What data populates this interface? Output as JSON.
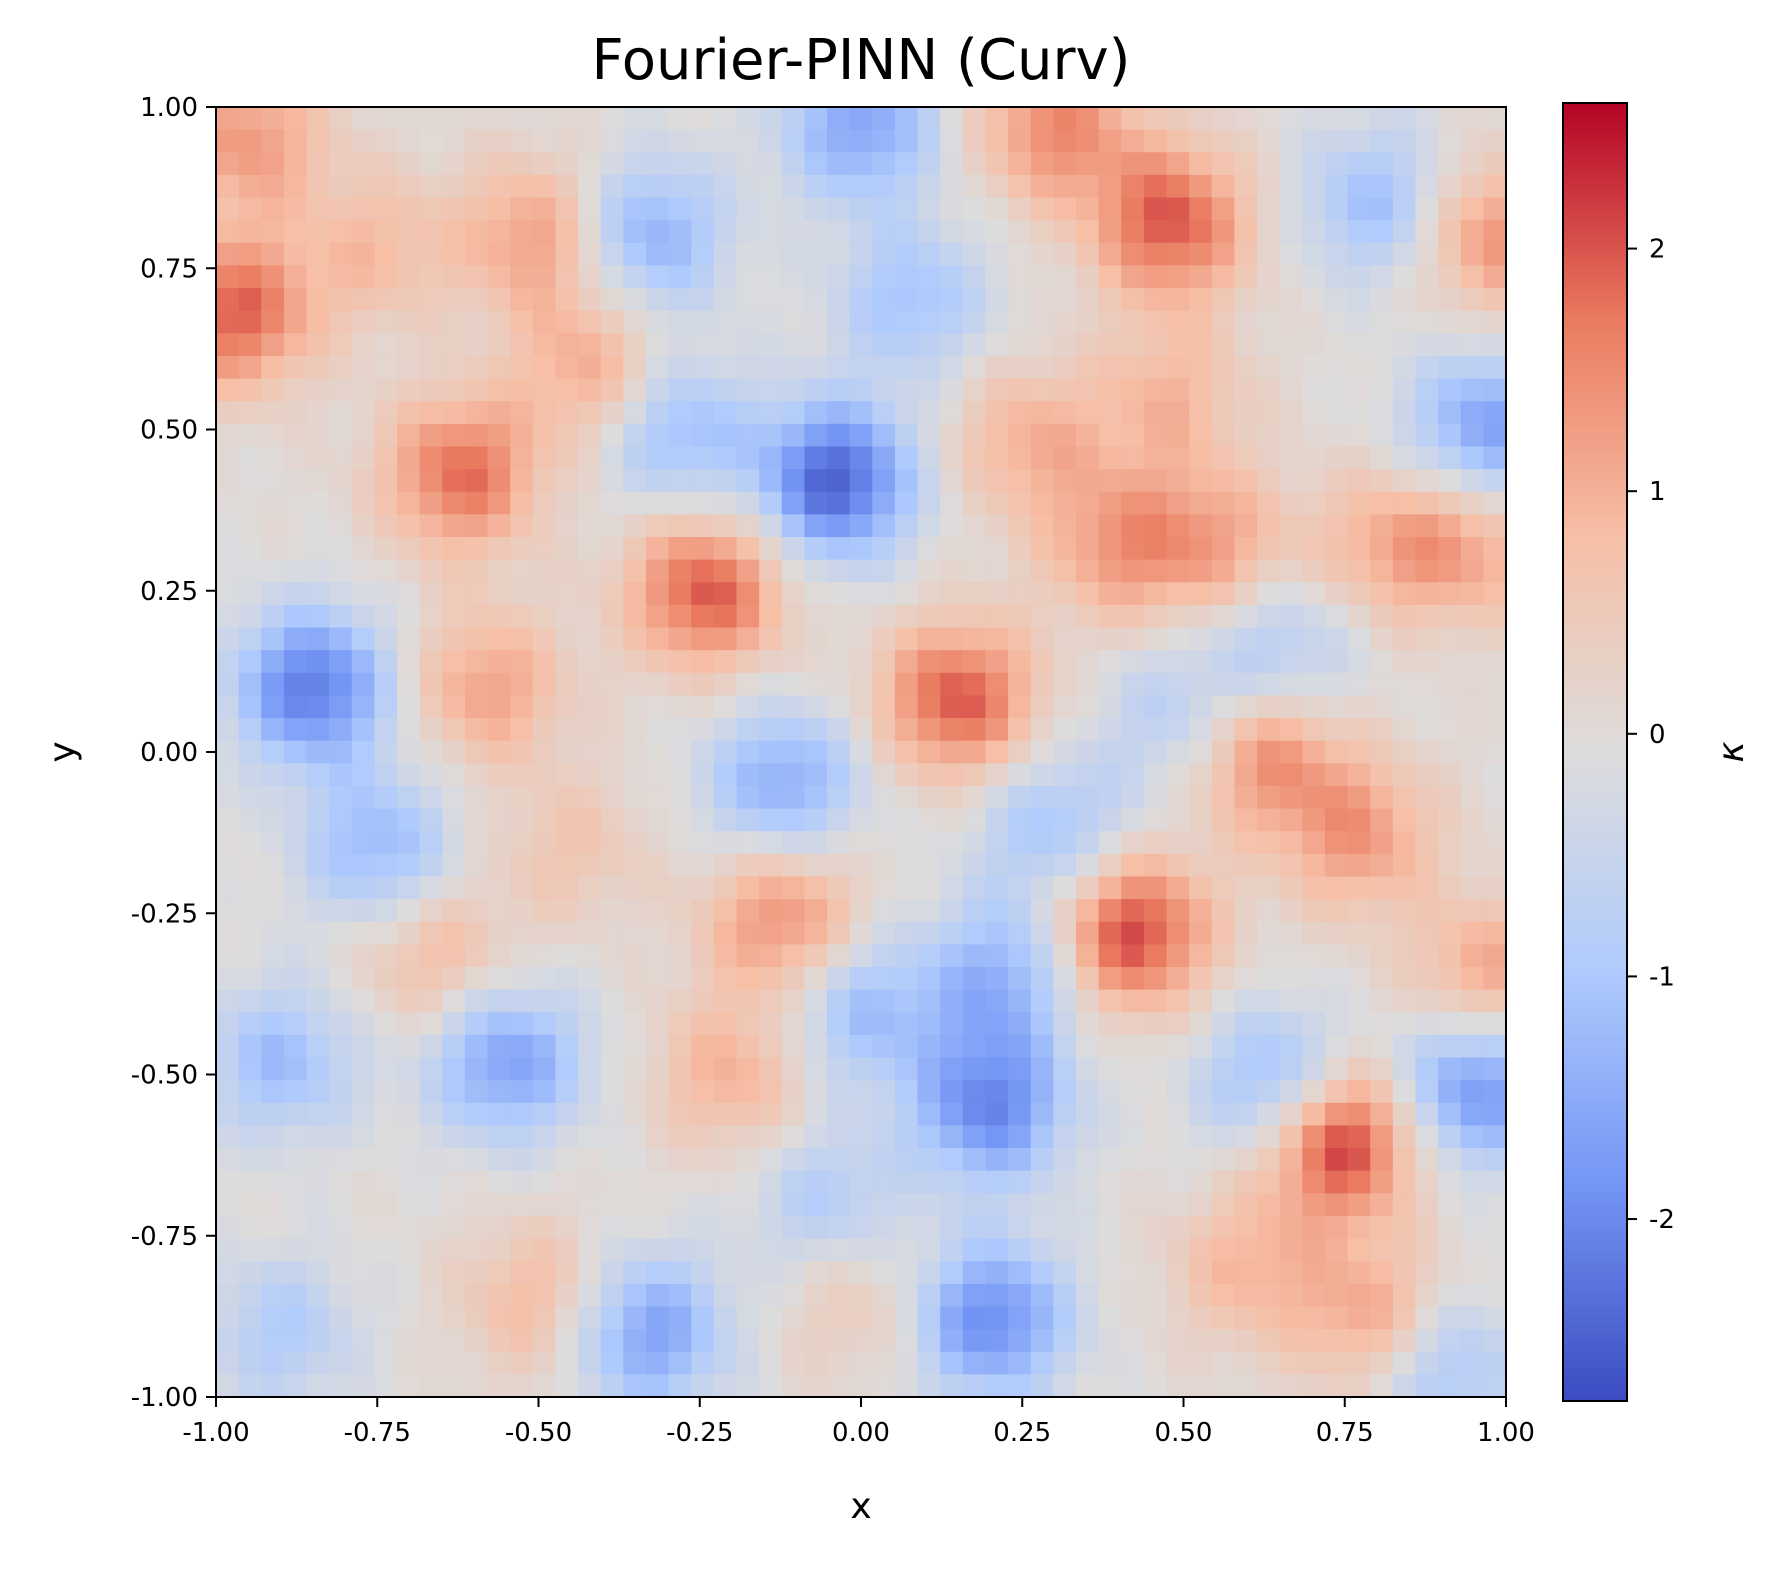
{
  "chart_data": {
    "type": "heatmap",
    "title": "Fourier-PINN (Curv)",
    "xlabel": "x",
    "ylabel": "y",
    "xlim": [
      -1.0,
      1.0
    ],
    "ylim": [
      -1.0,
      1.0
    ],
    "x_ticks": [
      -1.0,
      -0.75,
      -0.5,
      -0.25,
      0.0,
      0.25,
      0.5,
      0.75,
      1.0
    ],
    "x_tick_labels": [
      "-1.00",
      "-0.75",
      "-0.50",
      "-0.25",
      "0.00",
      "0.25",
      "0.50",
      "0.75",
      "1.00"
    ],
    "y_ticks": [
      1.0,
      0.75,
      0.5,
      0.25,
      0.0,
      -0.25,
      -0.5,
      -0.75,
      -1.0
    ],
    "y_tick_labels": [
      "1.00",
      "0.75",
      "0.50",
      "0.25",
      "0.00",
      "-0.25",
      "-0.50",
      "-0.75",
      "-1.00"
    ],
    "grid": false,
    "colormap": "coolwarm",
    "colormap_stops": [
      "#3b4cc0",
      "#7396f5",
      "#b0cbfc",
      "#dddcdc",
      "#f6bfa6",
      "#ea7b60",
      "#b40426"
    ],
    "colorbar": {
      "label": "κ",
      "vmin": -2.75,
      "vmax": 2.6,
      "ticks": [
        2,
        1,
        0,
        -1,
        -2
      ],
      "tick_labels": [
        "2",
        "1",
        "0",
        "-1",
        "-2"
      ]
    },
    "grid_size": [
      57,
      57
    ],
    "features": [
      {
        "x": 0.74,
        "y": -0.6,
        "value": 2.55
      },
      {
        "x": -0.04,
        "y": 0.42,
        "value": -2.5
      },
      {
        "x": 0.42,
        "y": -0.28,
        "value": 2.2
      },
      {
        "x": -0.24,
        "y": 0.25,
        "value": 2.0
      },
      {
        "x": 0.15,
        "y": 0.08,
        "value": 2.0
      },
      {
        "x": 0.48,
        "y": 0.82,
        "value": 2.0
      },
      {
        "x": -0.97,
        "y": 0.68,
        "value": 1.9
      },
      {
        "x": -0.62,
        "y": 0.43,
        "value": 1.8
      },
      {
        "x": 0.3,
        "y": 0.97,
        "value": 1.5
      },
      {
        "x": 0.62,
        "y": 0.0,
        "value": 1.6
      },
      {
        "x": -0.12,
        "y": -0.26,
        "value": 1.5
      },
      {
        "x": -0.95,
        "y": 0.95,
        "value": 1.3
      },
      {
        "x": 0.98,
        "y": 0.8,
        "value": 1.4
      },
      {
        "x": -0.5,
        "y": 0.8,
        "value": 1.3
      },
      {
        "x": -0.42,
        "y": 0.6,
        "value": 1.0
      },
      {
        "x": 0.4,
        "y": 0.32,
        "value": 1.2
      },
      {
        "x": 0.55,
        "y": 0.32,
        "value": 1.1
      },
      {
        "x": 0.82,
        "y": 0.32,
        "value": 1.0
      },
      {
        "x": 0.95,
        "y": 0.32,
        "value": 1.0
      },
      {
        "x": -0.58,
        "y": 0.1,
        "value": 1.2
      },
      {
        "x": -0.66,
        "y": -0.32,
        "value": 0.9
      },
      {
        "x": 0.77,
        "y": -0.13,
        "value": 1.3
      },
      {
        "x": 0.97,
        "y": -0.35,
        "value": 1.2
      },
      {
        "x": -0.2,
        "y": -0.5,
        "value": 1.0
      },
      {
        "x": 0.8,
        "y": -0.88,
        "value": 1.3
      },
      {
        "x": 0.6,
        "y": -0.8,
        "value": 0.9
      },
      {
        "x": -0.5,
        "y": -0.85,
        "value": 0.9
      },
      {
        "x": 0.26,
        "y": 0.48,
        "value": 1.0
      },
      {
        "x": 0.48,
        "y": 0.55,
        "value": 0.9
      },
      {
        "x": -0.35,
        "y": 0.52,
        "value": 0.6
      },
      {
        "x": -0.75,
        "y": 0.78,
        "value": 0.8
      },
      {
        "x": -0.85,
        "y": 0.1,
        "value": -2.2
      },
      {
        "x": -0.3,
        "y": 0.5,
        "value": -1.7
      },
      {
        "x": -0.33,
        "y": 0.8,
        "value": -1.5
      },
      {
        "x": 0.0,
        "y": 0.97,
        "value": -1.6
      },
      {
        "x": 0.08,
        "y": 0.7,
        "value": -1.1
      },
      {
        "x": -0.12,
        "y": -0.05,
        "value": -1.5
      },
      {
        "x": 0.2,
        "y": -0.55,
        "value": -2.0
      },
      {
        "x": 0.22,
        "y": -0.35,
        "value": -1.4
      },
      {
        "x": 0.2,
        "y": -0.88,
        "value": -2.0
      },
      {
        "x": -0.33,
        "y": -0.9,
        "value": -1.7
      },
      {
        "x": -0.55,
        "y": -0.48,
        "value": -1.7
      },
      {
        "x": -0.9,
        "y": -0.48,
        "value": -1.2
      },
      {
        "x": 0.65,
        "y": -0.52,
        "value": -1.6
      },
      {
        "x": 0.95,
        "y": -0.52,
        "value": -1.9
      },
      {
        "x": 0.97,
        "y": 0.5,
        "value": -1.7
      },
      {
        "x": 0.8,
        "y": 0.85,
        "value": -1.2
      },
      {
        "x": -0.75,
        "y": -0.15,
        "value": -1.3
      },
      {
        "x": 0.3,
        "y": -0.12,
        "value": -1.1
      },
      {
        "x": 0.65,
        "y": 0.15,
        "value": -1.0
      },
      {
        "x": -0.9,
        "y": -0.9,
        "value": -0.9
      },
      {
        "x": 0.0,
        "y": -0.4,
        "value": -1.2
      },
      {
        "x": -0.05,
        "y": -0.7,
        "value": -0.9
      },
      {
        "x": 0.9,
        "y": -0.95,
        "value": -1.2
      },
      {
        "x": 0.5,
        "y": 0.05,
        "value": -0.9
      },
      {
        "x": -0.45,
        "y": -0.15,
        "value": 0.6
      },
      {
        "x": 0.0,
        "y": -0.85,
        "value": 0.6
      }
    ]
  }
}
